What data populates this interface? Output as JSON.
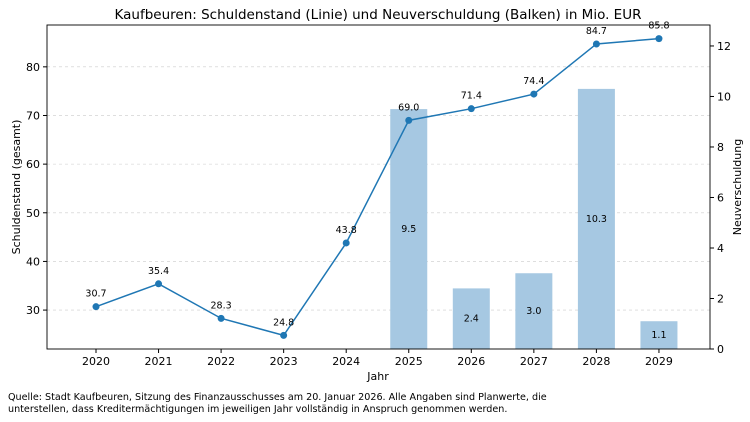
{
  "chart_data": {
    "type": "bar+line",
    "title": "Kaufbeuren: Schuldenstand (Linie) und Neuverschuldung (Balken) in Mio. EUR",
    "xlabel": "Jahr",
    "ylabel_left": "Schuldenstand (gesamt)",
    "ylabel_right": "Neuverschuldung",
    "categories": [
      "2020",
      "2021",
      "2022",
      "2023",
      "2024",
      "2025",
      "2026",
      "2027",
      "2028",
      "2029"
    ],
    "line": {
      "values": [
        30.7,
        35.4,
        28.3,
        24.8,
        43.8,
        69.0,
        71.4,
        74.4,
        84.7,
        85.8
      ],
      "labels": [
        "30.7",
        "35.4",
        "28.3",
        "24.8",
        "43.8",
        "69.0",
        "71.4",
        "74.4",
        "84.7",
        "85.8"
      ],
      "color": "#1f77b4",
      "axis": "left"
    },
    "bars": {
      "values": [
        null,
        null,
        null,
        null,
        null,
        9.5,
        2.4,
        3.0,
        10.3,
        1.1
      ],
      "labels": [
        "",
        "",
        "",
        "",
        "",
        "9.5",
        "2.4",
        "3.0",
        "10.3",
        "1.1"
      ],
      "color": "#a6c8e2",
      "axis": "right"
    },
    "ylim_left": [
      22,
      88.6
    ],
    "ylim_right": [
      0,
      12.83
    ],
    "yticks_left": [
      "30",
      "40",
      "50",
      "60",
      "70",
      "80"
    ],
    "yticks_right": [
      "0",
      "2",
      "4",
      "6",
      "8",
      "10",
      "12"
    ],
    "grid": "horizontal dashed (left axis)"
  },
  "footnote": "Quelle: Stadt Kaufbeuren, Sitzung des Finanzausschusses am 20. Januar 2026. Alle Angaben sind Planwerte, die\nunterstellen, dass Kreditermächtigungen im jeweiligen Jahr vollständig in Anspruch genommen werden."
}
